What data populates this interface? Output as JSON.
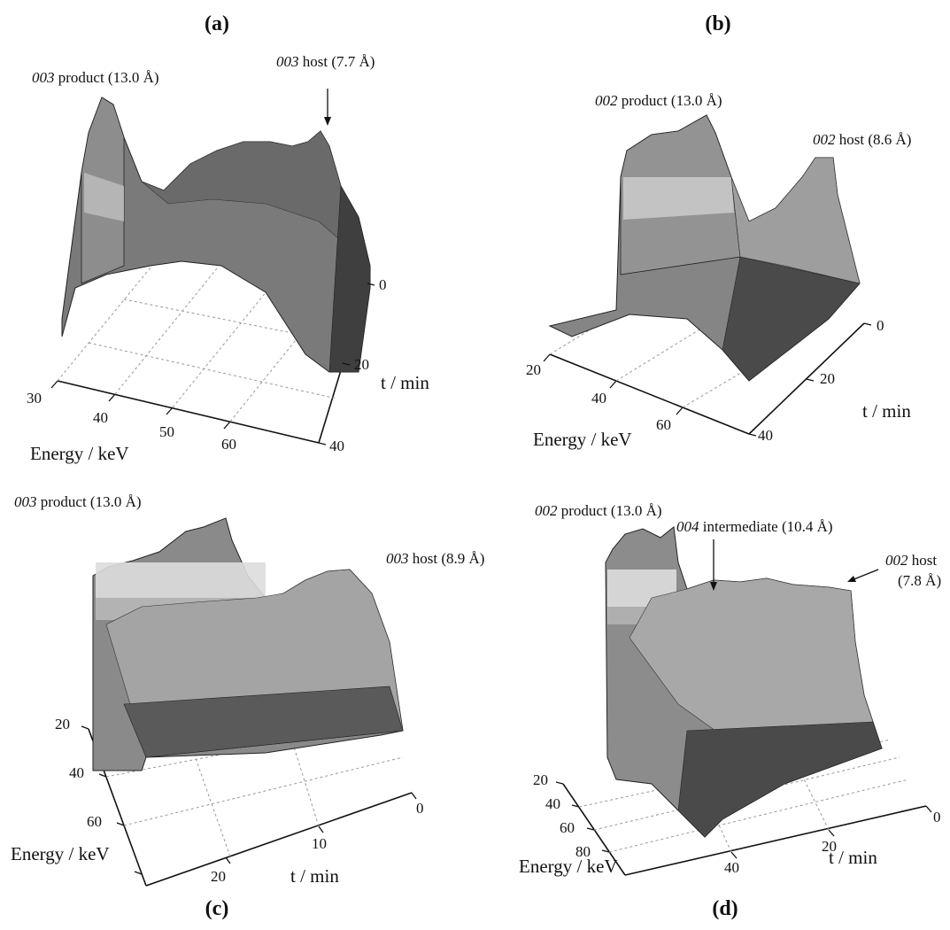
{
  "panels": [
    {
      "id": "a",
      "label": "(a)",
      "peaks": [
        {
          "reflection": "003",
          "text": "product (13.0 Å)"
        },
        {
          "reflection": "003",
          "text": "host (7.7 Å)"
        }
      ],
      "xlabel": "Energy / keV",
      "ylabel": "t / min",
      "xticks": [
        "30",
        "40",
        "50",
        "60"
      ],
      "yticks": [
        "0",
        "20",
        "40"
      ]
    },
    {
      "id": "b",
      "label": "(b)",
      "peaks": [
        {
          "reflection": "002",
          "text": "product (13.0 Å)"
        },
        {
          "reflection": "002",
          "text": "host (8.6 Å)"
        }
      ],
      "xlabel": "Energy / keV",
      "ylabel": "t / min",
      "xticks": [
        "20",
        "40",
        "60"
      ],
      "yticks": [
        "0",
        "20",
        "40"
      ]
    },
    {
      "id": "c",
      "label": "(c)",
      "peaks": [
        {
          "reflection": "003",
          "text": "product (13.0 Å)"
        },
        {
          "reflection": "003",
          "text": "host (8.9 Å)"
        }
      ],
      "xlabel": "Energy / keV",
      "ylabel": "t / min",
      "xticks": [
        "20",
        "40",
        "60"
      ],
      "yticks": [
        "0",
        "10",
        "20"
      ]
    },
    {
      "id": "d",
      "label": "(d)",
      "peaks": [
        {
          "reflection": "002",
          "text": "product (13.0 Å)"
        },
        {
          "reflection": "004",
          "text": "intermediate (10.4 Å)"
        },
        {
          "reflection": "002",
          "text": "host"
        },
        {
          "reflection": "",
          "text": "(7.8 Å)"
        }
      ],
      "xlabel": "Energy / keV",
      "ylabel": "t / min",
      "xticks": [
        "20",
        "40",
        "60",
        "80"
      ],
      "yticks": [
        "0",
        "20",
        "40"
      ]
    }
  ],
  "chart_data": [
    {
      "type": "surface",
      "panel": "(a)",
      "x_axis": {
        "label": "Energy / keV",
        "ticks": [
          30,
          40,
          50,
          60
        ],
        "range": [
          28,
          66
        ]
      },
      "t_axis": {
        "label": "t / min",
        "ticks": [
          0,
          20,
          40
        ],
        "range": [
          0,
          40
        ]
      },
      "series": [
        {
          "name": "003 product (13.0 Å)",
          "peak_energy_keV": 31.5,
          "intensity_profile_t": [
            0.95,
            0.95,
            0.9,
            0.85,
            0.8
          ]
        },
        {
          "name": "003 host (7.7 Å)",
          "peak_energy_keV": 57,
          "intensity_profile_t": [
            0.9,
            0.6,
            0.3,
            0.15,
            0.05
          ]
        }
      ]
    },
    {
      "type": "surface",
      "panel": "(b)",
      "x_axis": {
        "label": "Energy / keV",
        "ticks": [
          20,
          40,
          60
        ],
        "range": [
          18,
          70
        ]
      },
      "t_axis": {
        "label": "t / min",
        "ticks": [
          0,
          20,
          40
        ],
        "range": [
          0,
          40
        ]
      },
      "series": [
        {
          "name": "002 product (13.0 Å)",
          "peak_energy_keV": 30,
          "intensity_profile_t": [
            1.0,
            1.0,
            0.95,
            0.9,
            0.85
          ]
        },
        {
          "name": "002 host (8.6 Å)",
          "peak_energy_keV": 46,
          "intensity_profile_t": [
            0.85,
            0.55,
            0.3,
            0.15,
            0.05
          ]
        }
      ]
    },
    {
      "type": "surface",
      "panel": "(c)",
      "x_axis": {
        "label": "Energy / keV",
        "ticks": [
          20,
          40,
          60
        ],
        "range": [
          18,
          66
        ]
      },
      "t_axis": {
        "label": "t / min",
        "ticks": [
          0,
          10,
          20
        ],
        "range": [
          0,
          24
        ]
      },
      "series": [
        {
          "name": "003 product (13.0 Å)",
          "peak_energy_keV": 26,
          "intensity_profile_t": [
            1.0,
            1.0,
            0.95,
            0.9,
            0.9
          ]
        },
        {
          "name": "003 host (8.9 Å)",
          "peak_energy_keV": 38,
          "intensity_profile_t": [
            0.5,
            0.35,
            0.25,
            0.15,
            0.1
          ]
        }
      ]
    },
    {
      "type": "surface",
      "panel": "(d)",
      "x_axis": {
        "label": "Energy / keV",
        "ticks": [
          20,
          40,
          60,
          80
        ],
        "range": [
          18,
          88
        ]
      },
      "t_axis": {
        "label": "t / min",
        "ticks": [
          0,
          20,
          40
        ],
        "range": [
          0,
          45
        ]
      },
      "series": [
        {
          "name": "002 product (13.0 Å)",
          "peak_energy_keV": 22,
          "intensity_profile_t": [
            1.0,
            1.0,
            0.95,
            0.9,
            0.9
          ]
        },
        {
          "name": "004 intermediate (10.4 Å)",
          "peak_energy_keV": 30,
          "intensity_profile_t": [
            0.6,
            0.45,
            0.35,
            0.2,
            0.1
          ]
        },
        {
          "name": "002 host (7.8 Å)",
          "peak_energy_keV": 40,
          "intensity_profile_t": [
            0.6,
            0.45,
            0.3,
            0.15,
            0.05
          ]
        }
      ]
    }
  ]
}
